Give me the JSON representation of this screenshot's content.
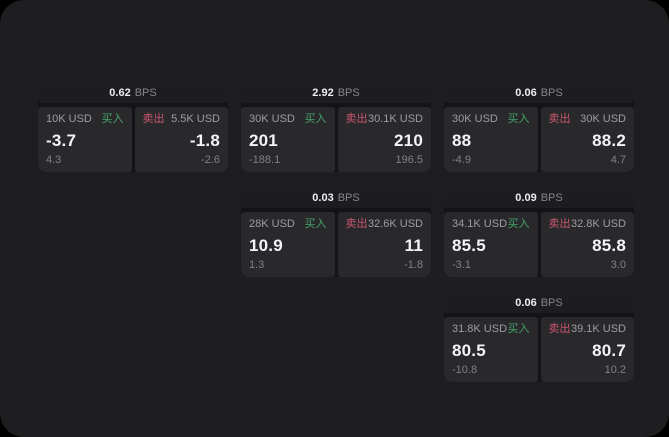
{
  "colors": {
    "page_background": "#000000",
    "window_background": "#1e1e21",
    "card_background": "#141416",
    "header_background": "#1d1d20",
    "panel_background": "#29292c",
    "buy_green": "#44a36a",
    "sell_red": "#c9566e",
    "value_white": "#f4f4f6",
    "label_gray": "#9d9da3",
    "sub_gray": "#808086"
  },
  "cards": [
    {
      "row": 1,
      "col": 1,
      "bps_value": "0.62",
      "bps_unit": "BPS",
      "buy": {
        "amount": "10K USD",
        "side": "买入",
        "value": "-3.7",
        "sub": "4.3"
      },
      "sell": {
        "side": "卖出",
        "amount": "5.5K USD",
        "value": "-1.8",
        "sub": "-2.6"
      }
    },
    {
      "row": 1,
      "col": 2,
      "bps_value": "2.92",
      "bps_unit": "BPS",
      "buy": {
        "amount": "30K USD",
        "side": "买入",
        "value": "201",
        "sub": "-188.1"
      },
      "sell": {
        "side": "卖出",
        "amount": "30.1K USD",
        "value": "210",
        "sub": "196.5"
      }
    },
    {
      "row": 1,
      "col": 3,
      "bps_value": "0.06",
      "bps_unit": "BPS",
      "buy": {
        "amount": "30K USD",
        "side": "买入",
        "value": "88",
        "sub": "-4.9"
      },
      "sell": {
        "side": "卖出",
        "amount": "30K USD",
        "value": "88.2",
        "sub": "4.7"
      }
    },
    {
      "row": 2,
      "col": 2,
      "bps_value": "0.03",
      "bps_unit": "BPS",
      "buy": {
        "amount": "28K USD",
        "side": "买入",
        "value": "10.9",
        "sub": "1.3"
      },
      "sell": {
        "side": "卖出",
        "amount": "32.6K USD",
        "value": "11",
        "sub": "-1.8"
      }
    },
    {
      "row": 2,
      "col": 3,
      "bps_value": "0.09",
      "bps_unit": "BPS",
      "buy": {
        "amount": "34.1K USD",
        "side": "买入",
        "value": "85.5",
        "sub": "-3.1"
      },
      "sell": {
        "side": "卖出",
        "amount": "32.8K USD",
        "value": "85.8",
        "sub": "3.0"
      }
    },
    {
      "row": 3,
      "col": 3,
      "bps_value": "0.06",
      "bps_unit": "BPS",
      "buy": {
        "amount": "31.8K USD",
        "side": "买入",
        "value": "80.5",
        "sub": "-10.8"
      },
      "sell": {
        "side": "卖出",
        "amount": "39.1K USD",
        "value": "80.7",
        "sub": "10.2"
      }
    }
  ]
}
